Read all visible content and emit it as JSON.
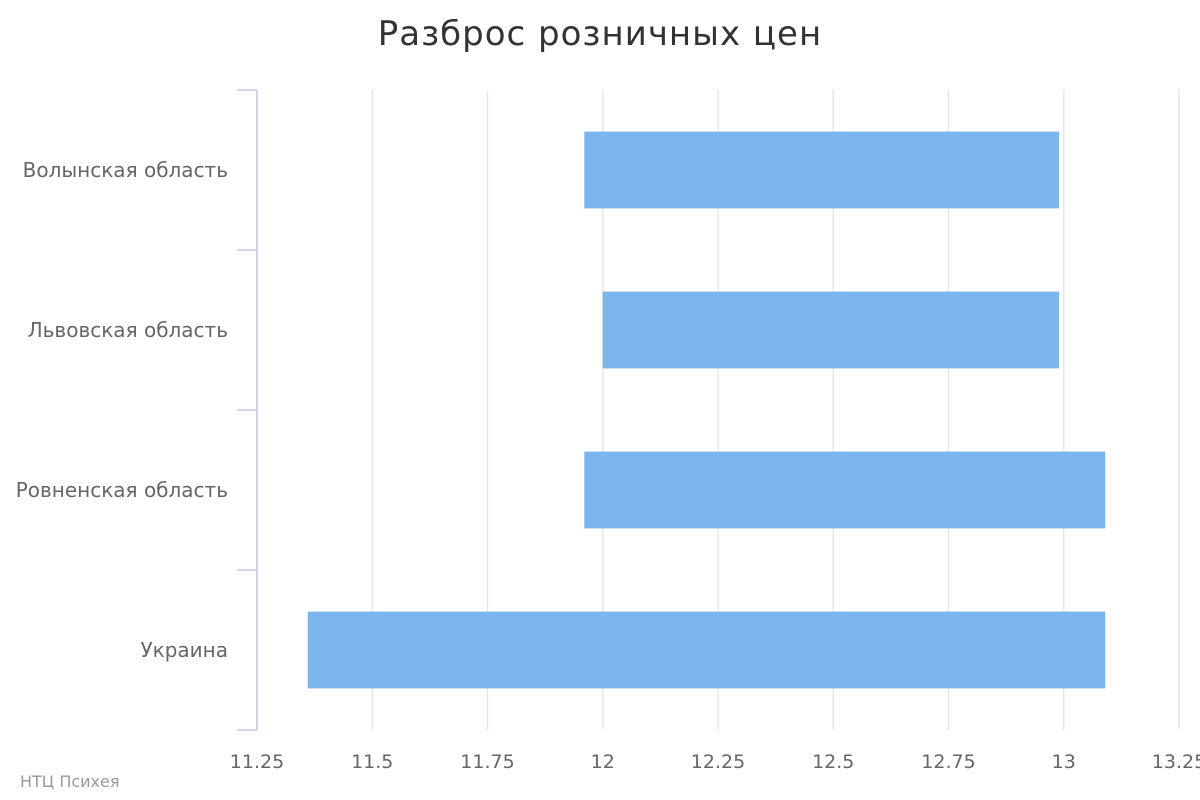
{
  "chart_data": {
    "type": "bar",
    "orientation": "horizontal",
    "title": "Разброс розничных цен",
    "categories": [
      "Волынская область",
      "Львовская область",
      "Ровненская область",
      "Украина"
    ],
    "series": [
      {
        "ranges": [
          [
            11.96,
            12.99
          ],
          [
            12.0,
            12.99
          ],
          [
            11.96,
            13.09
          ],
          [
            11.36,
            13.09
          ]
        ]
      }
    ],
    "xlim": [
      11.25,
      13.25
    ],
    "x_ticks": [
      11.25,
      11.5,
      11.75,
      12,
      12.25,
      12.5,
      12.75,
      13,
      13.25
    ],
    "x_tick_labels": [
      "11.25",
      "11.5",
      "11.75",
      "12",
      "12.25",
      "12.5",
      "12.75",
      "13",
      "13.25"
    ],
    "xlabel": "",
    "ylabel": "",
    "grid": true,
    "legend": "none",
    "colors": {
      "bar": "#7cb5ec",
      "grid": "#e6e6e6",
      "axis": "#ccd6eb",
      "text": "#666666"
    }
  },
  "credits": "НТЦ Психея"
}
